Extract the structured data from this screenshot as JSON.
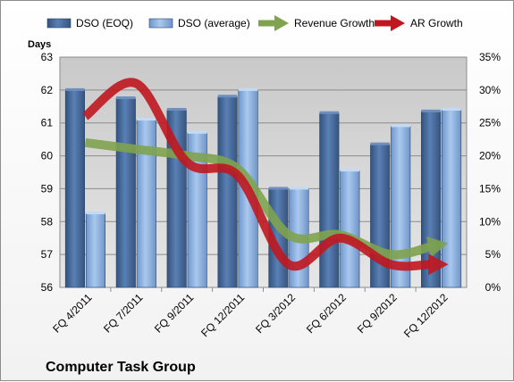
{
  "chart_data": {
    "type": "bar",
    "title": "Computer Task Group",
    "ylabel": "Days",
    "categories": [
      "FQ 4/2011",
      "FQ 7/2011",
      "FQ 9/2011",
      "FQ 12/2011",
      "FQ 3/2012",
      "FQ 6/2012",
      "FQ 9/2012",
      "FQ 12/2012"
    ],
    "ylim": [
      56,
      63
    ],
    "yticks": [
      "56",
      "57",
      "58",
      "59",
      "60",
      "61",
      "62",
      "63"
    ],
    "y2lim": [
      0,
      35
    ],
    "y2ticks": [
      "0%",
      "5%",
      "10%",
      "15%",
      "20%",
      "25%",
      "30%",
      "35%"
    ],
    "series": [
      {
        "name": "DSO (EOQ)",
        "kind": "bar",
        "axis": "left",
        "color": "#4a6fa0",
        "values": [
          62.0,
          61.75,
          61.4,
          61.8,
          59.0,
          61.3,
          60.35,
          61.35
        ]
      },
      {
        "name": "DSO (average)",
        "kind": "bar",
        "axis": "left",
        "color": "#8db3e2",
        "values": [
          58.25,
          61.1,
          60.7,
          62.0,
          59.0,
          59.55,
          60.9,
          61.4
        ]
      },
      {
        "name": "Revenue Growth",
        "kind": "line",
        "axis": "right",
        "color": "#7fa34f",
        "values": [
          22.0,
          21.0,
          20.0,
          18.0,
          8.0,
          8.0,
          5.0,
          6.5
        ]
      },
      {
        "name": "AR Growth",
        "kind": "line",
        "axis": "right",
        "color": "#c0171f",
        "values": [
          26.0,
          31.0,
          19.0,
          17.0,
          3.5,
          7.5,
          3.5,
          3.5
        ]
      }
    ],
    "grid": true,
    "legend": "top"
  }
}
